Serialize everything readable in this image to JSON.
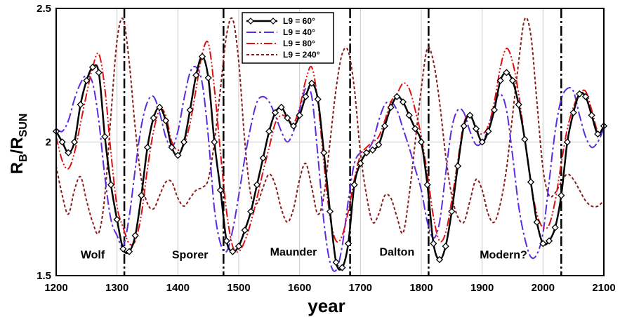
{
  "chart_data": {
    "type": "line",
    "title": "",
    "xlabel": "year",
    "ylabel_main": "R",
    "ylabel_sub1": "B",
    "ylabel_sep": "/R",
    "ylabel_sub2": "SUN",
    "xlim": [
      1200,
      2100
    ],
    "ylim": [
      1.5,
      2.5
    ],
    "xticks": [
      1200,
      1300,
      1400,
      1500,
      1600,
      1700,
      1800,
      1900,
      2000,
      2100
    ],
    "yticks": [
      1.5,
      2,
      2.5
    ],
    "xtick_labels": [
      "1200",
      "1300",
      "1400",
      "1500",
      "1600",
      "1700",
      "1800",
      "1900",
      "2000",
      "2100"
    ],
    "ytick_labels": [
      "1.5",
      "2",
      "2.5"
    ],
    "grid": true,
    "legend_position": "top-center",
    "minima_lines": [
      1312,
      1475,
      1683,
      1812,
      2030
    ],
    "annotations": [
      {
        "text": "Wolf",
        "x": 1260,
        "y": 1.58
      },
      {
        "text": "Sporer",
        "x": 1420,
        "y": 1.58
      },
      {
        "text": "Maunder",
        "x": 1590,
        "y": 1.59
      },
      {
        "text": "Dalton",
        "x": 1760,
        "y": 1.59
      },
      {
        "text": "Modern?",
        "x": 1935,
        "y": 1.58
      }
    ],
    "series": [
      {
        "name": "L9 = 60°",
        "color": "#000000",
        "style": "solid-diamond",
        "x": [
          1200,
          1210,
          1220,
          1230,
          1240,
          1250,
          1260,
          1270,
          1280,
          1290,
          1300,
          1310,
          1320,
          1330,
          1340,
          1350,
          1360,
          1370,
          1380,
          1390,
          1400,
          1410,
          1420,
          1430,
          1440,
          1450,
          1460,
          1470,
          1480,
          1490,
          1500,
          1510,
          1520,
          1530,
          1540,
          1550,
          1560,
          1570,
          1580,
          1590,
          1600,
          1610,
          1620,
          1630,
          1640,
          1650,
          1660,
          1670,
          1680,
          1690,
          1700,
          1710,
          1720,
          1730,
          1740,
          1750,
          1760,
          1770,
          1780,
          1790,
          1800,
          1810,
          1820,
          1830,
          1840,
          1850,
          1860,
          1870,
          1880,
          1890,
          1900,
          1910,
          1920,
          1930,
          1940,
          1950,
          1960,
          1970,
          1980,
          1990,
          2000,
          2010,
          2020,
          2030,
          2040,
          2050,
          2060,
          2070,
          2080,
          2090,
          2100
        ],
        "y": [
          2.04,
          2.0,
          1.96,
          2.0,
          2.14,
          2.23,
          2.28,
          2.26,
          2.02,
          1.84,
          1.71,
          1.6,
          1.59,
          1.65,
          1.8,
          1.98,
          2.09,
          2.13,
          2.08,
          1.98,
          1.95,
          2.0,
          2.12,
          2.25,
          2.32,
          2.24,
          2.0,
          1.82,
          1.63,
          1.59,
          1.61,
          1.67,
          1.74,
          1.84,
          1.94,
          2.04,
          2.11,
          2.13,
          2.09,
          2.06,
          2.1,
          2.17,
          2.22,
          2.16,
          1.96,
          1.74,
          1.55,
          1.53,
          1.62,
          1.84,
          1.92,
          1.96,
          1.97,
          1.99,
          2.06,
          2.13,
          2.17,
          2.15,
          2.1,
          2.05,
          2.0,
          1.84,
          1.62,
          1.56,
          1.61,
          1.74,
          1.91,
          2.06,
          2.1,
          2.05,
          2.0,
          2.04,
          2.12,
          2.23,
          2.26,
          2.23,
          2.14,
          2.01,
          1.85,
          1.7,
          1.62,
          1.63,
          1.68,
          1.8,
          2.0,
          2.11,
          2.18,
          2.17,
          2.1,
          2.03,
          2.06
        ]
      },
      {
        "name": "L9 = 40°",
        "color": "#5b2be0",
        "style": "dash-dot",
        "x": [
          1200,
          1210,
          1220,
          1230,
          1240,
          1250,
          1260,
          1270,
          1280,
          1290,
          1300,
          1310,
          1320,
          1330,
          1340,
          1350,
          1360,
          1370,
          1380,
          1390,
          1400,
          1410,
          1420,
          1430,
          1440,
          1450,
          1460,
          1470,
          1480,
          1490,
          1500,
          1510,
          1520,
          1530,
          1540,
          1550,
          1560,
          1570,
          1580,
          1590,
          1600,
          1610,
          1620,
          1630,
          1640,
          1650,
          1660,
          1670,
          1680,
          1690,
          1700,
          1710,
          1720,
          1730,
          1740,
          1750,
          1760,
          1770,
          1780,
          1790,
          1800,
          1810,
          1820,
          1830,
          1840,
          1850,
          1860,
          1870,
          1880,
          1890,
          1900,
          1910,
          1920,
          1930,
          1940,
          1950,
          1960,
          1970,
          1980,
          1990,
          2000,
          2010,
          2020,
          2030,
          2040,
          2050,
          2060,
          2070,
          2080,
          2090,
          2100
        ],
        "y": [
          2.05,
          2.04,
          2.08,
          2.16,
          2.22,
          2.25,
          2.22,
          2.08,
          1.87,
          1.71,
          1.65,
          1.61,
          1.72,
          1.9,
          2.06,
          2.15,
          2.17,
          2.11,
          2.02,
          1.98,
          2.04,
          2.16,
          2.26,
          2.28,
          2.22,
          2.02,
          1.75,
          1.62,
          1.59,
          1.67,
          1.8,
          1.94,
          2.06,
          2.15,
          2.17,
          2.15,
          2.1,
          2.04,
          2.0,
          2.04,
          2.12,
          2.2,
          2.17,
          1.95,
          1.7,
          1.55,
          1.52,
          1.61,
          1.78,
          1.92,
          1.96,
          1.97,
          2.0,
          2.08,
          2.14,
          2.15,
          2.12,
          2.05,
          1.98,
          1.9,
          1.82,
          1.7,
          1.64,
          1.7,
          1.88,
          2.05,
          2.12,
          2.11,
          2.04,
          1.99,
          2.0,
          2.05,
          2.14,
          2.18,
          2.12,
          1.95,
          1.76,
          1.64,
          1.57,
          1.58,
          1.66,
          1.85,
          2.04,
          2.16,
          2.2,
          2.19,
          2.1,
          2.02,
          1.98,
          2.0,
          2.05
        ]
      },
      {
        "name": "L9 = 80°",
        "color": "#e01010",
        "style": "dash-dot-dot",
        "x": [
          1200,
          1210,
          1220,
          1230,
          1240,
          1250,
          1260,
          1270,
          1280,
          1290,
          1300,
          1310,
          1320,
          1330,
          1340,
          1350,
          1360,
          1370,
          1380,
          1390,
          1400,
          1410,
          1420,
          1430,
          1440,
          1450,
          1460,
          1470,
          1480,
          1490,
          1500,
          1510,
          1520,
          1530,
          1540,
          1550,
          1560,
          1570,
          1580,
          1590,
          1600,
          1610,
          1620,
          1630,
          1640,
          1650,
          1660,
          1670,
          1680,
          1690,
          1700,
          1710,
          1720,
          1730,
          1740,
          1750,
          1760,
          1770,
          1780,
          1790,
          1800,
          1810,
          1820,
          1830,
          1840,
          1850,
          1860,
          1870,
          1880,
          1890,
          1900,
          1910,
          1920,
          1930,
          1940,
          1950,
          1960,
          1970,
          1980,
          1990,
          2000,
          2010,
          2020,
          2030,
          2040,
          2050,
          2060,
          2070,
          2080,
          2090,
          2100
        ],
        "y": [
          2.02,
          1.93,
          1.9,
          1.96,
          2.07,
          2.18,
          2.28,
          2.33,
          2.2,
          1.96,
          1.76,
          1.68,
          1.62,
          1.63,
          1.73,
          1.9,
          2.04,
          2.12,
          2.1,
          2.0,
          1.97,
          1.99,
          2.07,
          2.2,
          2.33,
          2.37,
          2.2,
          1.96,
          1.74,
          1.61,
          1.59,
          1.63,
          1.7,
          1.79,
          1.89,
          1.98,
          2.07,
          2.1,
          2.09,
          2.07,
          2.13,
          2.23,
          2.28,
          2.15,
          1.92,
          1.72,
          1.63,
          1.65,
          1.74,
          1.86,
          1.95,
          1.98,
          2.0,
          2.02,
          2.08,
          2.15,
          2.18,
          2.22,
          2.2,
          2.12,
          2.02,
          1.88,
          1.72,
          1.63,
          1.66,
          1.78,
          1.93,
          2.07,
          2.1,
          2.05,
          2.03,
          2.06,
          2.15,
          2.28,
          2.35,
          2.3,
          2.18,
          2.01,
          1.85,
          1.73,
          1.68,
          1.69,
          1.78,
          1.92,
          2.05,
          2.13,
          2.18,
          2.19,
          2.12,
          2.04,
          2.05
        ]
      },
      {
        "name": "L9 = 240°",
        "color": "#8b1a1a",
        "style": "dotted",
        "x": [
          1200,
          1210,
          1220,
          1230,
          1240,
          1250,
          1260,
          1270,
          1280,
          1290,
          1300,
          1310,
          1320,
          1330,
          1340,
          1350,
          1360,
          1370,
          1380,
          1390,
          1400,
          1410,
          1420,
          1430,
          1440,
          1450,
          1460,
          1470,
          1480,
          1490,
          1500,
          1510,
          1520,
          1530,
          1540,
          1550,
          1560,
          1570,
          1580,
          1590,
          1600,
          1610,
          1620,
          1630,
          1640,
          1650,
          1660,
          1670,
          1680,
          1690,
          1700,
          1710,
          1720,
          1730,
          1740,
          1750,
          1760,
          1770,
          1780,
          1790,
          1800,
          1810,
          1820,
          1830,
          1840,
          1850,
          1860,
          1870,
          1880,
          1890,
          1900,
          1910,
          1920,
          1930,
          1940,
          1950,
          1960,
          1970,
          1980,
          1990,
          2000,
          2010,
          2020,
          2030,
          2040,
          2050,
          2060,
          2070,
          2080,
          2090,
          2100
        ],
        "y": [
          1.91,
          1.8,
          1.73,
          1.82,
          1.87,
          1.78,
          1.7,
          1.66,
          1.8,
          2.1,
          2.38,
          2.46,
          2.3,
          2.05,
          1.86,
          1.77,
          1.75,
          1.8,
          1.85,
          1.85,
          1.79,
          1.76,
          1.79,
          1.82,
          1.83,
          1.86,
          2.0,
          2.2,
          2.4,
          2.46,
          2.3,
          2.0,
          1.8,
          1.77,
          1.83,
          1.88,
          1.84,
          1.75,
          1.7,
          1.75,
          1.86,
          1.92,
          1.83,
          1.73,
          1.8,
          2.0,
          2.2,
          2.33,
          2.34,
          2.2,
          1.96,
          1.8,
          1.7,
          1.73,
          1.8,
          1.79,
          1.72,
          1.66,
          1.8,
          2.0,
          2.2,
          2.35,
          2.3,
          2.15,
          1.95,
          1.8,
          1.72,
          1.7,
          1.78,
          1.86,
          1.82,
          1.73,
          1.7,
          1.77,
          1.9,
          2.1,
          2.3,
          2.46,
          2.4,
          2.15,
          1.9,
          1.8,
          1.81,
          1.85,
          1.88,
          1.86,
          1.82,
          1.78,
          1.76,
          1.76,
          1.78
        ]
      }
    ]
  }
}
